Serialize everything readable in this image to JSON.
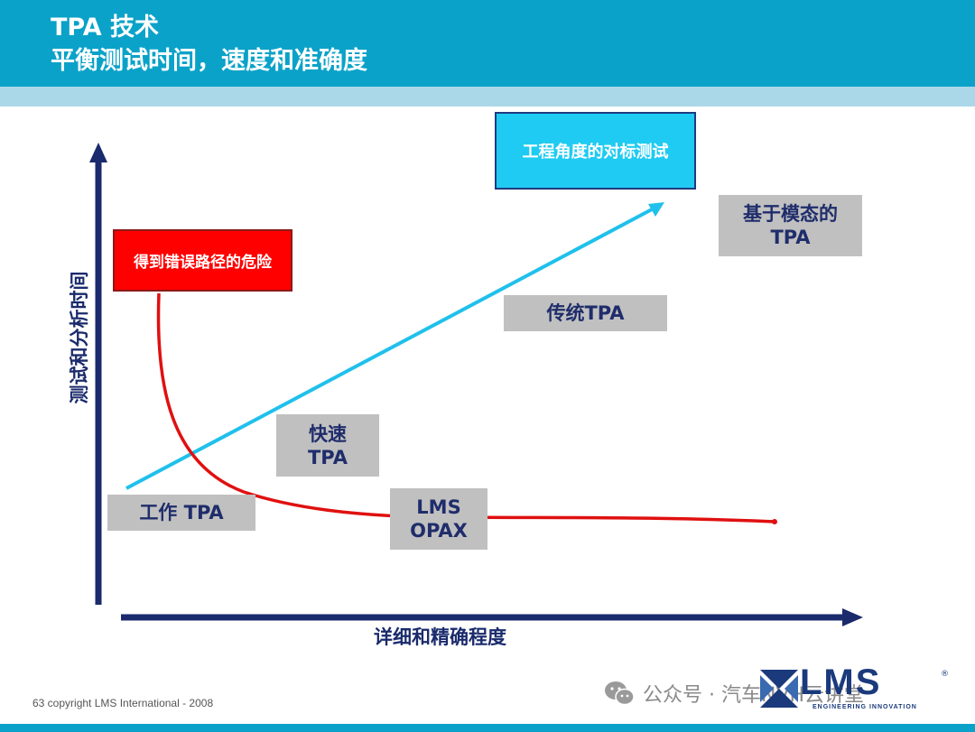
{
  "header": {
    "title_line1": "TPA 技术",
    "title_line2": "平衡测试时间，速度和准确度"
  },
  "axes": {
    "y_label": "测试和分析时间",
    "x_label": "详细和精确程度"
  },
  "boxes": {
    "danger": "得到错误路径的危险",
    "benchmark": "工程角度的对标测试",
    "modal_tpa_line1": "基于模态的",
    "modal_tpa_line2": "TPA",
    "traditional_tpa": "传统TPA",
    "fast_tpa_line1": "快速",
    "fast_tpa_line2": "TPA",
    "working_tpa": "工作 TPA",
    "lms_opax_line1": "LMS",
    "lms_opax_line2": "OPAX"
  },
  "footer": {
    "copyright": "63 copyright LMS International - 2008",
    "wechat": "公众号 · 汽车NVH云讲堂",
    "logo_text": "LMS",
    "logo_tagline": "ENGINEERING INNOVATION",
    "logo_registered": "®"
  },
  "colors": {
    "header_blue": "#0aa2c8",
    "header_strip": "#aad8e8",
    "axis_navy": "#1a2a6c",
    "red_curve": "#e01010",
    "cyan_line": "#1fc0ec",
    "gray_box": "#c0c0c0"
  },
  "icons": {
    "wechat": "wechat-icon",
    "logo_mark": "lms-logo-mark"
  }
}
